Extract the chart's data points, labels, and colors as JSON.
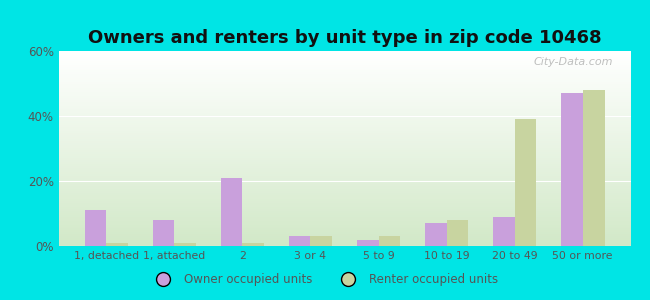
{
  "title": "Owners and renters by unit type in zip code 10468",
  "categories": [
    "1, detached",
    "1, attached",
    "2",
    "3 or 4",
    "5 to 9",
    "10 to 19",
    "20 to 49",
    "50 or more"
  ],
  "owner_values": [
    11,
    8,
    21,
    3,
    2,
    7,
    9,
    47
  ],
  "renter_values": [
    1,
    1,
    1,
    3,
    3,
    8,
    39,
    48
  ],
  "owner_color": "#c9a0dc",
  "renter_color": "#c8d4a0",
  "ylim": [
    0,
    60
  ],
  "yticks": [
    0,
    20,
    40,
    60
  ],
  "ytick_labels": [
    "0%",
    "20%",
    "40%",
    "60%"
  ],
  "legend_owner": "Owner occupied units",
  "legend_renter": "Renter occupied units",
  "background_color": "#00e5e5",
  "title_fontsize": 13,
  "watermark": "City-Data.com",
  "bar_width": 0.32
}
